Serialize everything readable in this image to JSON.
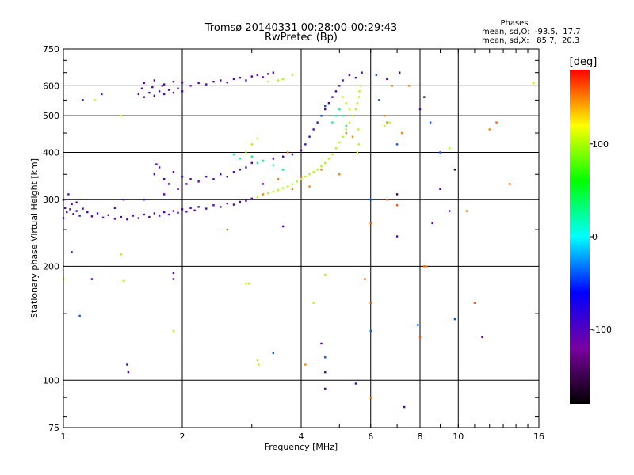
{
  "chart_data": {
    "type": "scatter",
    "title": "Tromsø 20140331 00:28:00-00:29:43",
    "subtitle": "RwPretec (Bp)",
    "xlabel": "Frequency [MHz]",
    "ylabel": "Stationary phase Virtual Height [km]",
    "xscale": "log",
    "yscale": "log",
    "xlim": [
      1,
      16
    ],
    "ylim": [
      75,
      750
    ],
    "xticks": [
      1,
      2,
      4,
      6,
      8,
      10,
      16
    ],
    "xtick_labels": [
      "1",
      "2",
      "4",
      "6",
      "8",
      "10",
      "16"
    ],
    "yticks": [
      75,
      100,
      200,
      300,
      400,
      500,
      600,
      750
    ],
    "ytick_labels": [
      "75",
      "100",
      "200",
      "300",
      "400",
      "500",
      "600",
      "750"
    ],
    "grid": true,
    "color_by": "phase",
    "colorbar": {
      "label": "[deg]",
      "range": [
        -180,
        180
      ],
      "ticks": [
        -100,
        0,
        100
      ],
      "tick_labels": [
        "-100",
        "0",
        "100"
      ],
      "colormap": [
        "#000000",
        "#7a00a0",
        "#0000ff",
        "#00ffff",
        "#00ff00",
        "#ffff00",
        "#ff0000"
      ]
    },
    "stats": {
      "header": "Phases",
      "line_o": "mean, sd,O:  -93.5,  17.7",
      "line_x": "mean, sd,X:   85.7,  20.3"
    },
    "series": [
      {
        "phase": -100,
        "points": [
          [
            1.0,
            268
          ],
          [
            1.02,
            278
          ],
          [
            1.04,
            283
          ],
          [
            1.06,
            275
          ],
          [
            1.08,
            280
          ],
          [
            1.1,
            272
          ],
          [
            1.12,
            284
          ],
          [
            1.15,
            278
          ],
          [
            1.18,
            271
          ],
          [
            1.22,
            276
          ],
          [
            1.26,
            269
          ],
          [
            1.3,
            273
          ],
          [
            1.35,
            267
          ],
          [
            1.4,
            270
          ],
          [
            1.45,
            266
          ],
          [
            1.5,
            272
          ],
          [
            1.55,
            268
          ],
          [
            1.6,
            274
          ],
          [
            1.65,
            270
          ],
          [
            1.7,
            276
          ],
          [
            1.75,
            272
          ],
          [
            1.8,
            278
          ],
          [
            1.85,
            274
          ],
          [
            1.9,
            280
          ],
          [
            1.95,
            277
          ],
          [
            2.0,
            283
          ],
          [
            2.05,
            279
          ],
          [
            2.1,
            285
          ],
          [
            2.15,
            281
          ],
          [
            2.2,
            287
          ],
          [
            2.3,
            284
          ],
          [
            2.4,
            290
          ],
          [
            2.5,
            287
          ],
          [
            2.6,
            293
          ],
          [
            2.7,
            291
          ],
          [
            2.8,
            296
          ],
          [
            2.9,
            298
          ],
          [
            3.0,
            302
          ],
          [
            1.0,
            300
          ],
          [
            1.03,
            310
          ],
          [
            1.05,
            292
          ],
          [
            1.01,
            285
          ],
          [
            1.08,
            295
          ],
          [
            1.35,
            285
          ],
          [
            1.6,
            300
          ],
          [
            1.8,
            310
          ],
          [
            1.7,
            350
          ],
          [
            1.75,
            365
          ],
          [
            1.8,
            340
          ],
          [
            1.85,
            330
          ],
          [
            1.9,
            355
          ],
          [
            1.95,
            320
          ],
          [
            2.0,
            345
          ],
          [
            1.72,
            372
          ],
          [
            2.05,
            330
          ],
          [
            2.1,
            340
          ],
          [
            2.2,
            335
          ],
          [
            2.3,
            345
          ],
          [
            2.4,
            340
          ],
          [
            2.5,
            350
          ],
          [
            2.6,
            345
          ],
          [
            2.7,
            355
          ],
          [
            2.8,
            360
          ],
          [
            2.9,
            365
          ],
          [
            3.0,
            375
          ],
          [
            3.2,
            380
          ],
          [
            3.4,
            385
          ],
          [
            3.6,
            390
          ],
          [
            3.8,
            395
          ],
          [
            4.0,
            405
          ],
          [
            4.1,
            420
          ],
          [
            4.2,
            440
          ],
          [
            4.3,
            460
          ],
          [
            4.4,
            480
          ],
          [
            4.5,
            500
          ],
          [
            4.6,
            520
          ],
          [
            4.7,
            540
          ],
          [
            4.8,
            560
          ],
          [
            4.9,
            580
          ],
          [
            5.0,
            600
          ],
          [
            5.1,
            620
          ],
          [
            5.3,
            640
          ],
          [
            5.5,
            630
          ],
          [
            5.7,
            650
          ],
          [
            1.55,
            570
          ],
          [
            1.6,
            560
          ],
          [
            1.65,
            575
          ],
          [
            1.7,
            565
          ],
          [
            1.75,
            580
          ],
          [
            1.8,
            570
          ],
          [
            1.85,
            585
          ],
          [
            1.9,
            575
          ],
          [
            1.95,
            590
          ],
          [
            2.0,
            580
          ],
          [
            2.1,
            600
          ],
          [
            2.2,
            610
          ],
          [
            2.3,
            605
          ],
          [
            2.4,
            615
          ],
          [
            2.5,
            620
          ],
          [
            2.6,
            612
          ],
          [
            2.7,
            625
          ],
          [
            2.8,
            630
          ],
          [
            2.9,
            620
          ],
          [
            3.0,
            635
          ],
          [
            3.1,
            640
          ],
          [
            3.2,
            632
          ],
          [
            3.3,
            645
          ],
          [
            3.4,
            650
          ],
          [
            1.6,
            610
          ],
          [
            1.7,
            620
          ],
          [
            1.8,
            605
          ],
          [
            1.9,
            615
          ],
          [
            2.0,
            612
          ],
          [
            1.58,
            590
          ],
          [
            1.68,
            595
          ],
          [
            1.78,
            600
          ],
          [
            1.12,
            550
          ],
          [
            1.25,
            570
          ],
          [
            1.05,
            218
          ],
          [
            1.18,
            185
          ],
          [
            1.42,
            300
          ],
          [
            3.2,
            330
          ],
          [
            3.6,
            255
          ],
          [
            4.5,
            125
          ],
          [
            4.6,
            105
          ],
          [
            4.6,
            95
          ],
          [
            5.5,
            98
          ],
          [
            6.6,
            625
          ],
          [
            7.0,
            240
          ],
          [
            8.0,
            520
          ],
          [
            8.6,
            260
          ],
          [
            9.0,
            320
          ],
          [
            9.5,
            280
          ],
          [
            7.3,
            85
          ],
          [
            11.5,
            130
          ],
          [
            1.9,
            192
          ],
          [
            1.9,
            185
          ],
          [
            1.45,
            110
          ],
          [
            1.46,
            105
          ]
        ]
      },
      {
        "phase": 100,
        "points": [
          [
            3.1,
            305
          ],
          [
            3.2,
            308
          ],
          [
            3.3,
            312
          ],
          [
            3.4,
            315
          ],
          [
            3.5,
            318
          ],
          [
            3.6,
            322
          ],
          [
            3.7,
            325
          ],
          [
            3.8,
            330
          ],
          [
            3.9,
            335
          ],
          [
            4.0,
            340
          ],
          [
            4.1,
            345
          ],
          [
            4.2,
            350
          ],
          [
            4.3,
            355
          ],
          [
            4.4,
            360
          ],
          [
            4.5,
            368
          ],
          [
            4.6,
            375
          ],
          [
            4.7,
            385
          ],
          [
            4.8,
            395
          ],
          [
            4.9,
            410
          ],
          [
            5.0,
            425
          ],
          [
            5.1,
            440
          ],
          [
            5.2,
            460
          ],
          [
            5.3,
            480
          ],
          [
            5.4,
            500
          ],
          [
            5.5,
            520
          ],
          [
            5.55,
            540
          ],
          [
            5.6,
            560
          ],
          [
            5.62,
            580
          ],
          [
            5.65,
            600
          ],
          [
            5.58,
            460
          ],
          [
            5.6,
            420
          ],
          [
            5.55,
            400
          ],
          [
            3.5,
            620
          ],
          [
            3.6,
            625
          ],
          [
            3.3,
            615
          ],
          [
            3.8,
            640
          ],
          [
            3.0,
            420
          ],
          [
            3.1,
            435
          ],
          [
            2.9,
            400
          ],
          [
            5.1,
            560
          ],
          [
            5.2,
            540
          ],
          [
            5.3,
            520
          ],
          [
            1.4,
            500
          ],
          [
            1.4,
            215
          ],
          [
            1.2,
            550
          ],
          [
            1.0,
            185
          ],
          [
            1.42,
            183
          ],
          [
            2.95,
            180
          ],
          [
            3.1,
            113
          ],
          [
            3.12,
            110
          ],
          [
            4.6,
            190
          ],
          [
            6.5,
            470
          ],
          [
            6.7,
            480
          ],
          [
            9.5,
            410
          ],
          [
            15.5,
            610
          ],
          [
            1.9,
            135
          ],
          [
            4.3,
            160
          ],
          [
            2.9,
            180
          ]
        ]
      },
      {
        "phase": 30,
        "points": [
          [
            3.0,
            390
          ],
          [
            3.1,
            375
          ],
          [
            3.2,
            380
          ],
          [
            3.4,
            370
          ],
          [
            3.6,
            360
          ],
          [
            2.7,
            395
          ],
          [
            2.8,
            385
          ],
          [
            4.8,
            480
          ],
          [
            4.9,
            500
          ],
          [
            5.0,
            520
          ],
          [
            5.1,
            500
          ],
          [
            5.2,
            470
          ]
        ]
      },
      {
        "phase": 150,
        "points": [
          [
            3.5,
            340
          ],
          [
            3.8,
            320
          ],
          [
            4.0,
            345
          ],
          [
            4.2,
            325
          ],
          [
            4.5,
            360
          ],
          [
            3.7,
            400
          ],
          [
            5.2,
            450
          ],
          [
            5.4,
            440
          ],
          [
            6.5,
            500
          ],
          [
            6.6,
            480
          ],
          [
            6.8,
            600
          ],
          [
            7.5,
            600
          ],
          [
            7.2,
            450
          ],
          [
            10.5,
            280
          ],
          [
            12.0,
            460
          ],
          [
            8.3,
            200
          ],
          [
            6.0,
            90
          ],
          [
            4.1,
            110
          ],
          [
            3.2,
            310
          ],
          [
            5.0,
            350
          ]
        ]
      },
      {
        "phase": -40,
        "points": [
          [
            4.6,
            530
          ],
          [
            4.5,
            500
          ],
          [
            6.2,
            640
          ],
          [
            6.3,
            550
          ],
          [
            6.0,
            300
          ],
          [
            7.0,
            420
          ],
          [
            8.5,
            480
          ],
          [
            9.0,
            400
          ],
          [
            9.8,
            145
          ],
          [
            1.1,
            148
          ],
          [
            7.9,
            140
          ],
          [
            6.0,
            135
          ],
          [
            4.6,
            115
          ],
          [
            3.4,
            118
          ]
        ]
      },
      {
        "phase": 160,
        "points": [
          [
            6.0,
            260
          ],
          [
            6.6,
            300
          ],
          [
            7.0,
            290
          ],
          [
            5.8,
            185
          ],
          [
            6.0,
            160
          ],
          [
            8.0,
            130
          ],
          [
            8.2,
            200
          ],
          [
            11.0,
            160
          ],
          [
            12.5,
            480
          ],
          [
            13.5,
            330
          ],
          [
            2.6,
            250
          ]
        ]
      },
      {
        "phase": -150,
        "points": [
          [
            7.1,
            650
          ],
          [
            8.2,
            560
          ],
          [
            9.8,
            360
          ],
          [
            7.0,
            310
          ],
          [
            1.0,
            300
          ]
        ]
      }
    ]
  }
}
